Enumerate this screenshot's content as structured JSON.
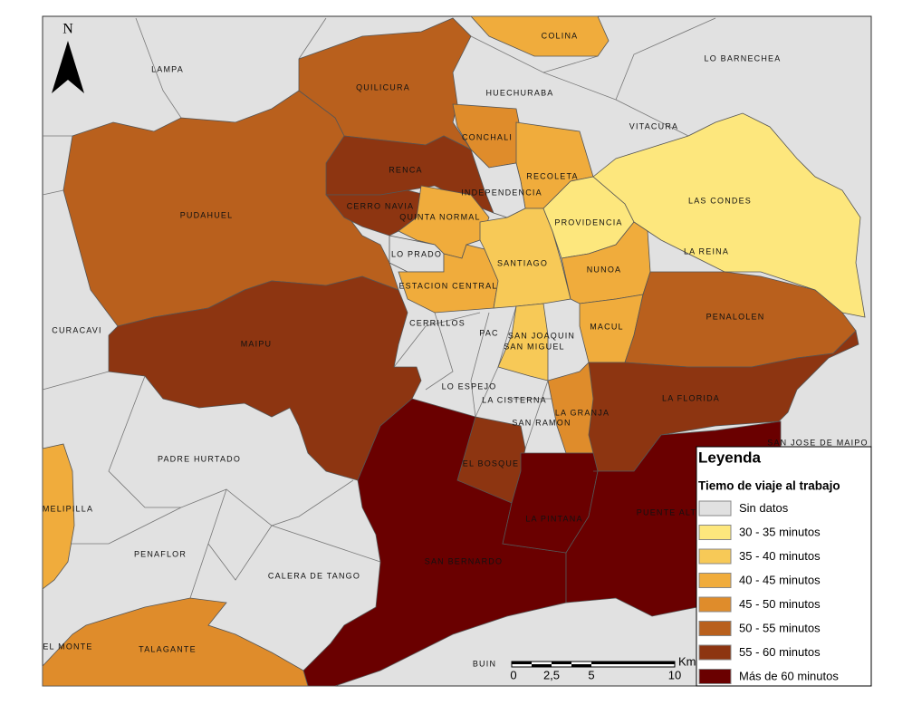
{
  "north": "N",
  "regions": [
    {
      "name": "COLINA",
      "category": "40 - 45 minutos"
    },
    {
      "name": "QUILICURA",
      "category": "50 - 55 minutos"
    },
    {
      "name": "PUDAHUEL",
      "category": "50 - 55 minutos"
    },
    {
      "name": "RENCA",
      "category": "55 - 60 minutos"
    },
    {
      "name": "CERRO NAVIA",
      "category": "55 - 60 minutos"
    },
    {
      "name": "CONCHALI",
      "category": "45 - 50 minutos"
    },
    {
      "name": "RECOLETA",
      "category": "40 - 45 minutos"
    },
    {
      "name": "INDEPENDENCIA",
      "category": "Sin datos"
    },
    {
      "name": "QUINTA NORMAL",
      "category": "40 - 45 minutos"
    },
    {
      "name": "LO PRADO",
      "category": "Sin datos"
    },
    {
      "name": "ESTACION CENTRAL",
      "category": "40 - 45 minutos"
    },
    {
      "name": "SANTIAGO",
      "category": "35 - 40 minutos"
    },
    {
      "name": "PROVIDENCIA",
      "category": "30 - 35 minutos"
    },
    {
      "name": "LAS CONDES",
      "category": "30 - 35 minutos"
    },
    {
      "name": "NUNOA",
      "category": "40 - 45 minutos"
    },
    {
      "name": "MACUL",
      "category": "40 - 45 minutos"
    },
    {
      "name": "PENALOLEN",
      "category": "50 - 55 minutos"
    },
    {
      "name": "LA FLORIDA",
      "category": "55 - 60 minutos"
    },
    {
      "name": "SAN MIGUEL",
      "category": "35 - 40 minutos"
    },
    {
      "name": "SAN JOAQUIN",
      "category": "Sin datos"
    },
    {
      "name": "LA GRANJA",
      "category": "45 - 50 minutos"
    },
    {
      "name": "MAIPU",
      "category": "55 - 60 minutos"
    },
    {
      "name": "EL BOSQUE",
      "category": "55 - 60 minutos"
    },
    {
      "name": "SAN BERNARDO",
      "category": "Más de 60 minutos"
    },
    {
      "name": "LA PINTANA",
      "category": "Más de 60 minutos"
    },
    {
      "name": "PUENTE ALTO",
      "category": "Más de 60 minutos"
    },
    {
      "name": "MELIPILLA",
      "category": "40 - 45 minutos"
    },
    {
      "name": "TALAGANTE",
      "category": "45 - 50 minutos"
    },
    {
      "name": "LAMPA",
      "category": "Sin datos"
    },
    {
      "name": "LO BARNECHEA",
      "category": "Sin datos"
    },
    {
      "name": "HUECHURABA",
      "category": "Sin datos"
    },
    {
      "name": "VITACURA",
      "category": "Sin datos"
    },
    {
      "name": "LA REINA",
      "category": "Sin datos"
    },
    {
      "name": "CERRILLOS",
      "category": "Sin datos"
    },
    {
      "name": "PAC",
      "category": "Sin datos"
    },
    {
      "name": "LO ESPEJO",
      "category": "Sin datos"
    },
    {
      "name": "LA CISTERNA",
      "category": "Sin datos"
    },
    {
      "name": "SAN RAMON",
      "category": "Sin datos"
    },
    {
      "name": "CURACAVI",
      "category": "Sin datos"
    },
    {
      "name": "PADRE HURTADO",
      "category": "Sin datos"
    },
    {
      "name": "PENAFLOR",
      "category": "Sin datos"
    },
    {
      "name": "CALERA DE TANGO",
      "category": "Sin datos"
    },
    {
      "name": "BUIN",
      "category": "Sin datos"
    },
    {
      "name": "EL MONTE",
      "category": "Sin datos"
    },
    {
      "name": "SAN JOSE DE MAIPO",
      "category": "Sin datos"
    }
  ],
  "legend": {
    "title": "Leyenda",
    "subtitle": "Tiemo de viaje al trabajo",
    "items": [
      {
        "label": "Sin datos",
        "color": "#e1e1e1"
      },
      {
        "label": "30 - 35 minutos",
        "color": "#fde77d"
      },
      {
        "label": "35 - 40 minutos",
        "color": "#f7c957"
      },
      {
        "label": "40 - 45 minutos",
        "color": "#f0ac3c"
      },
      {
        "label": "45 - 50 minutos",
        "color": "#df8c2b"
      },
      {
        "label": "50 - 55 minutos",
        "color": "#b9601d"
      },
      {
        "label": "55 - 60 minutos",
        "color": "#8d3511"
      },
      {
        "label": "Más de 60 minutos",
        "color": "#6a0000"
      }
    ]
  },
  "scale_bar": {
    "labels": [
      "0",
      "2,5",
      "5",
      "10"
    ],
    "unit": "Km"
  }
}
